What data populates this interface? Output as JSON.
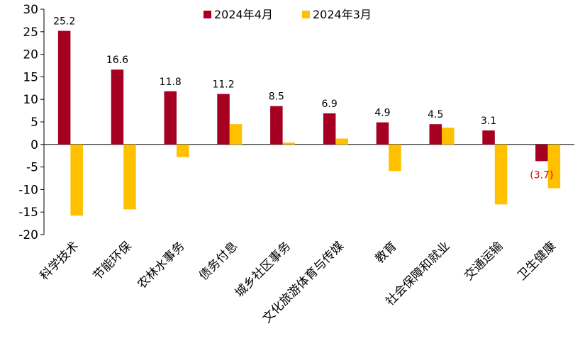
{
  "chart_data": {
    "type": "bar",
    "categories": [
      "科学技术",
      "节能环保",
      "农林水事务",
      "债务付息",
      "城乡社区事务",
      "文化旅游体育与传媒",
      "教育",
      "社会保障和就业",
      "交通运输",
      "卫生健康"
    ],
    "series": [
      {
        "name": "2024年4月",
        "color": "#a50021",
        "values": [
          25.2,
          16.6,
          11.8,
          11.2,
          8.5,
          6.9,
          4.9,
          4.5,
          3.1,
          -3.7
        ]
      },
      {
        "name": "2024年3月",
        "color": "#ffc000",
        "values": [
          -15.8,
          -14.4,
          -2.8,
          4.5,
          0.4,
          1.3,
          -5.9,
          3.7,
          -13.3,
          -9.7
        ]
      }
    ],
    "data_labels": [
      "25.2",
      "16.6",
      "11.8",
      "11.2",
      "8.5",
      "6.9",
      "4.9",
      "4.5",
      "3.1",
      "(3.7)"
    ],
    "yticks": [
      "30",
      "25",
      "20",
      "15",
      "10",
      "5",
      "0",
      "-5",
      "-10",
      "-15",
      "-20"
    ],
    "ylim": [
      -20,
      30
    ],
    "ytick_step": 5,
    "legend_position": "top-center",
    "grid": false,
    "title": "",
    "xlabel": "",
    "ylabel": ""
  }
}
